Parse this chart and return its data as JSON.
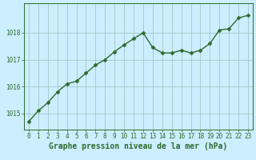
{
  "x": [
    0,
    1,
    2,
    3,
    4,
    5,
    6,
    7,
    8,
    9,
    10,
    11,
    12,
    13,
    14,
    15,
    16,
    17,
    18,
    19,
    20,
    21,
    22,
    23
  ],
  "y": [
    1014.7,
    1015.1,
    1015.4,
    1015.8,
    1016.1,
    1016.2,
    1016.5,
    1016.8,
    1017.0,
    1017.3,
    1017.55,
    1017.78,
    1018.0,
    1017.45,
    1017.25,
    1017.25,
    1017.35,
    1017.25,
    1017.35,
    1017.6,
    1018.1,
    1018.15,
    1018.55,
    1018.65
  ],
  "line_color": "#2d6a2d",
  "marker": "D",
  "marker_size": 2.5,
  "bg_color": "#cceeff",
  "grid_color": "#a0c8c8",
  "xlabel": "Graphe pression niveau de la mer (hPa)",
  "xlabel_fontsize": 7,
  "yticks": [
    1015,
    1016,
    1017,
    1018
  ],
  "ylim": [
    1014.4,
    1019.1
  ],
  "xlim": [
    -0.5,
    23.5
  ],
  "xticks": [
    0,
    1,
    2,
    3,
    4,
    5,
    6,
    7,
    8,
    9,
    10,
    11,
    12,
    13,
    14,
    15,
    16,
    17,
    18,
    19,
    20,
    21,
    22,
    23
  ],
  "tick_fontsize": 5.5,
  "line_width": 1.0
}
